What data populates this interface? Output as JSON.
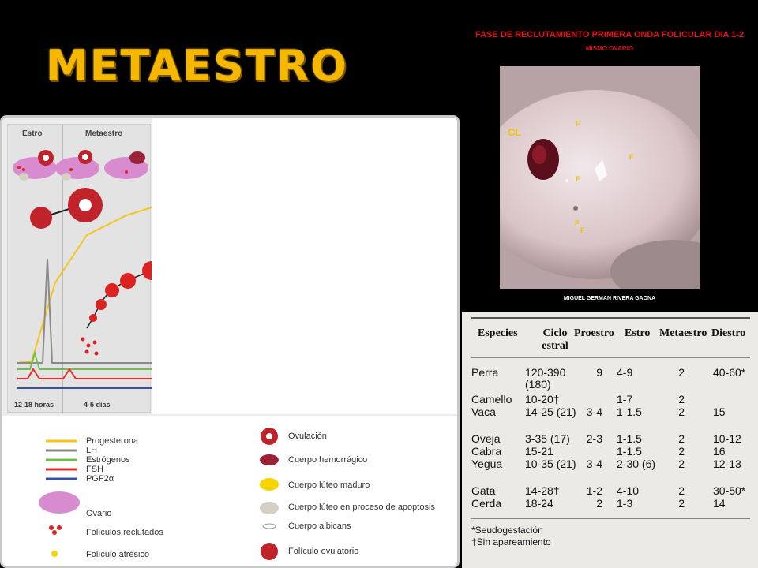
{
  "title": "METAESTRO",
  "diagram": {
    "phases": [
      "Estro",
      "Metaestro"
    ],
    "durations": [
      "12-18 horas",
      "4-5 dias"
    ],
    "legend_lines": [
      {
        "label": "Progesterona",
        "color": "#f5c518"
      },
      {
        "label": "LH",
        "color": "#8a8a8a"
      },
      {
        "label": "Estrógenos",
        "color": "#6cc04a"
      },
      {
        "label": "FSH",
        "color": "#e0302a"
      },
      {
        "label": "PGF2α",
        "color": "#3a4fa0"
      }
    ],
    "legend_left_items": [
      "Ovario",
      "Folículos reclutados",
      "Folículo atrésico"
    ],
    "legend_right_items": [
      "Ovulación",
      "Cuerpo hemorrágico",
      "Cuerpo lúteo maduro",
      "Cuerpo lúteo en proceso de apoptosis",
      "Cuerpo albicans",
      "Folículo ovulatorio"
    ]
  },
  "photo": {
    "title": "FASE  DE  RECLUTAMIENTO  PRIMERA   ONDA  FOLICULAR  DIA 1-2",
    "subtitle": "MISMO  OVARIO",
    "cl_label": "CL",
    "f_label": "F",
    "author": "MIGUEL  GERMAN  RIVERA  GAONA"
  },
  "table": {
    "headers": [
      "Especies",
      "Ciclo estral",
      "Proestro",
      "Estro",
      "Metaestro",
      "Diestro"
    ],
    "rows": [
      [
        "Perra",
        "120-390 (180)",
        "9",
        "4-9",
        "2",
        "40-60*"
      ],
      [
        "Camello",
        "10-20†",
        "",
        "1-7",
        "2",
        ""
      ],
      [
        "Vaca",
        "14-25 (21)",
        "3-4",
        "1-1.5",
        "2",
        "15"
      ],
      [
        "Oveja",
        "3-35 (17)",
        "2-3",
        "1-1.5",
        "2",
        "10-12"
      ],
      [
        "Cabra",
        "15-21",
        "",
        "1-1.5",
        "2",
        "16"
      ],
      [
        "Yegua",
        "10-35 (21)",
        "3-4",
        "2-30 (6)",
        "2",
        "12-13"
      ],
      [
        "Gata",
        "14-28†",
        "1-2",
        "4-10",
        "2",
        "30-50*"
      ],
      [
        "Cerda",
        "18-24",
        "2",
        "1-3",
        "2",
        "14"
      ]
    ],
    "notes": [
      "*Seudogestación",
      "†Sin apareamiento"
    ]
  }
}
